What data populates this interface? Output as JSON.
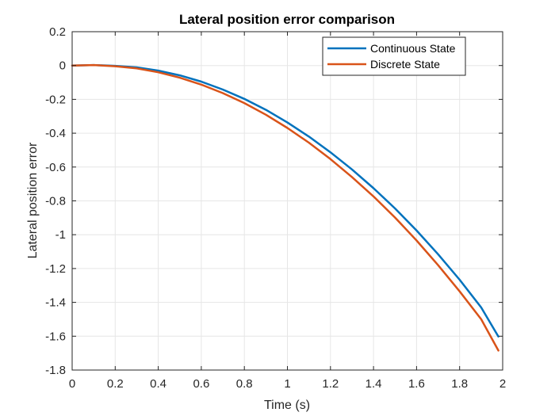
{
  "chart_data": {
    "type": "line",
    "title": "Lateral position error comparison",
    "xlabel": "Time (s)",
    "ylabel": "Lateral position error",
    "xlim": [
      0,
      2
    ],
    "ylim": [
      -1.8,
      0.2
    ],
    "xticks": [
      0,
      0.2,
      0.4,
      0.6,
      0.8,
      1,
      1.2,
      1.4,
      1.6,
      1.8,
      2
    ],
    "xtick_labels": [
      "0",
      "0.2",
      "0.4",
      "0.6",
      "0.8",
      "1",
      "1.2",
      "1.4",
      "1.6",
      "1.8",
      "2"
    ],
    "yticks": [
      0.2,
      0,
      -0.2,
      -0.4,
      -0.6,
      -0.8,
      -1,
      -1.2,
      -1.4,
      -1.6,
      -1.8
    ],
    "ytick_labels": [
      "0.2",
      "0",
      "-0.2",
      "-0.4",
      "-0.6",
      "-0.8",
      "-1",
      "-1.2",
      "-1.4",
      "-1.6",
      "-1.8"
    ],
    "grid": true,
    "legend_position": "top-right",
    "x": [
      0,
      0.1,
      0.2,
      0.3,
      0.4,
      0.5,
      0.6,
      0.7,
      0.8,
      0.9,
      1.0,
      1.1,
      1.2,
      1.3,
      1.4,
      1.5,
      1.6,
      1.7,
      1.8,
      1.9,
      1.98
    ],
    "series": [
      {
        "name": "Continuous State",
        "color": "#0072BD",
        "values": [
          0,
          0.003,
          -0.002,
          -0.011,
          -0.03,
          -0.058,
          -0.095,
          -0.142,
          -0.197,
          -0.262,
          -0.337,
          -0.42,
          -0.513,
          -0.614,
          -0.725,
          -0.845,
          -0.975,
          -1.115,
          -1.266,
          -1.43,
          -1.602
        ]
      },
      {
        "name": "Discrete State",
        "color": "#D95319",
        "values": [
          0,
          0.003,
          -0.004,
          -0.017,
          -0.04,
          -0.072,
          -0.113,
          -0.163,
          -0.222,
          -0.291,
          -0.369,
          -0.456,
          -0.553,
          -0.659,
          -0.774,
          -0.899,
          -1.034,
          -1.18,
          -1.335,
          -1.5,
          -1.685
        ]
      }
    ]
  }
}
